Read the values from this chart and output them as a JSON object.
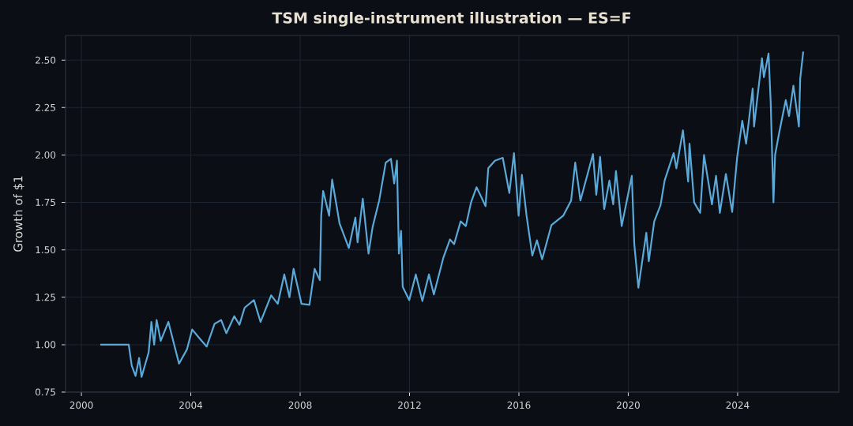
{
  "chart_data": {
    "type": "line",
    "title": "TSM single-instrument illustration — ES=F",
    "ylabel": "Growth of $1",
    "x": [
      2000.69,
      2001.73,
      2001.84,
      2001.98,
      2002.11,
      2002.2,
      2002.46,
      2002.56,
      2002.66,
      2002.75,
      2002.9,
      2003.18,
      2003.57,
      2003.86,
      2004.05,
      2004.34,
      2004.58,
      2004.87,
      2005.11,
      2005.3,
      2005.59,
      2005.78,
      2005.97,
      2006.31,
      2006.55,
      2006.94,
      2007.18,
      2007.42,
      2007.61,
      2007.76,
      2008.05,
      2008.34,
      2008.53,
      2008.72,
      2008.77,
      2008.84,
      2008.86,
      2009.06,
      2009.17,
      2009.44,
      2009.78,
      2010.02,
      2010.1,
      2010.29,
      2010.5,
      2010.65,
      2010.89,
      2011.13,
      2011.32,
      2011.44,
      2011.54,
      2011.61,
      2011.69,
      2011.75,
      2011.99,
      2012.23,
      2012.47,
      2012.71,
      2012.89,
      2013.24,
      2013.48,
      2013.63,
      2013.87,
      2014.06,
      2014.25,
      2014.45,
      2014.62,
      2014.78,
      2014.88,
      2015.12,
      2015.41,
      2015.65,
      2015.82,
      2015.99,
      2016.11,
      2016.28,
      2016.49,
      2016.66,
      2016.85,
      2017.19,
      2017.62,
      2017.91,
      2018.06,
      2018.25,
      2018.71,
      2018.83,
      2018.97,
      2019.12,
      2019.31,
      2019.45,
      2019.55,
      2019.76,
      2020.13,
      2020.22,
      2020.37,
      2020.66,
      2020.75,
      2020.95,
      2021.18,
      2021.33,
      2021.66,
      2021.76,
      2022.0,
      2022.19,
      2022.24,
      2022.41,
      2022.63,
      2022.77,
      2023.06,
      2023.21,
      2023.35,
      2023.57,
      2023.8,
      2023.98,
      2024.17,
      2024.31,
      2024.55,
      2024.6,
      2024.89,
      2024.96,
      2025.13,
      2025.21,
      2025.31,
      2025.37,
      2025.51,
      2025.76,
      2025.88,
      2026.04,
      2026.24,
      2026.29,
      2026.4
    ],
    "series": [
      {
        "color": "#5aa9d8",
        "values": [
          1.0,
          1.0,
          0.89,
          0.835,
          0.93,
          0.83,
          0.96,
          1.12,
          1.0,
          1.13,
          1.02,
          1.12,
          0.9,
          0.975,
          1.08,
          1.03,
          0.99,
          1.11,
          1.13,
          1.06,
          1.15,
          1.105,
          1.195,
          1.235,
          1.12,
          1.26,
          1.215,
          1.37,
          1.25,
          1.4,
          1.215,
          1.21,
          1.4,
          1.34,
          1.68,
          1.81,
          1.8,
          1.68,
          1.87,
          1.64,
          1.51,
          1.67,
          1.54,
          1.77,
          1.48,
          1.62,
          1.76,
          1.96,
          1.98,
          1.85,
          1.97,
          1.48,
          1.6,
          1.305,
          1.235,
          1.37,
          1.23,
          1.37,
          1.265,
          1.46,
          1.555,
          1.53,
          1.65,
          1.625,
          1.75,
          1.83,
          1.78,
          1.73,
          1.93,
          1.97,
          1.985,
          1.8,
          2.01,
          1.68,
          1.895,
          1.68,
          1.47,
          1.55,
          1.45,
          1.63,
          1.68,
          1.76,
          1.96,
          1.76,
          2.005,
          1.79,
          1.99,
          1.715,
          1.865,
          1.74,
          1.915,
          1.625,
          1.89,
          1.53,
          1.3,
          1.59,
          1.44,
          1.65,
          1.735,
          1.865,
          2.01,
          1.93,
          2.13,
          1.86,
          2.06,
          1.75,
          1.695,
          2.0,
          1.74,
          1.89,
          1.695,
          1.9,
          1.7,
          1.985,
          2.18,
          2.06,
          2.35,
          2.15,
          2.51,
          2.41,
          2.535,
          2.275,
          1.75,
          2.0,
          2.11,
          2.29,
          2.205,
          2.365,
          2.15,
          2.405,
          2.545
        ]
      }
    ],
    "xlim": [
      1999.42,
      2027.7
    ],
    "ylim": [
      0.75,
      2.63
    ],
    "xticks": [
      2000,
      2004,
      2008,
      2012,
      2016,
      2020,
      2024
    ],
    "yticks": [
      {
        "value": 0.75,
        "label": "0.75"
      },
      {
        "value": 1.0,
        "label": "1.00"
      },
      {
        "value": 1.25,
        "label": "1.25"
      },
      {
        "value": 1.5,
        "label": "1.50"
      },
      {
        "value": 1.75,
        "label": "1.75"
      },
      {
        "value": 2.0,
        "label": "2.00"
      },
      {
        "value": 2.25,
        "label": "2.25"
      },
      {
        "value": 2.5,
        "label": "2.50"
      }
    ],
    "grid": true,
    "marker": "none",
    "line_style": "solid"
  }
}
